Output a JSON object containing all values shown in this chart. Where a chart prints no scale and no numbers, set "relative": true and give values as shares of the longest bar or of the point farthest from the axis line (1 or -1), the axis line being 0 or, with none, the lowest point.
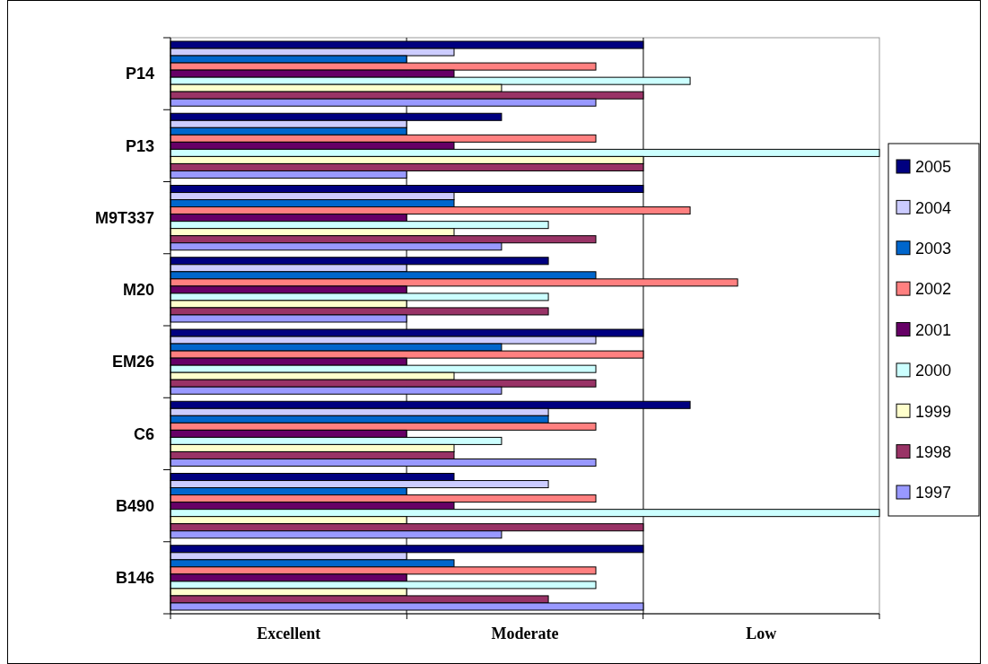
{
  "chart_data": {
    "type": "bar",
    "orientation": "horizontal",
    "relative": true,
    "categories": [
      "P14",
      "P13",
      "M9T337",
      "M20",
      "EM26",
      "C6",
      "B490",
      "B146"
    ],
    "series": [
      {
        "name": "2005",
        "color": "#000080",
        "values": [
          0.667,
          0.467,
          0.667,
          0.533,
          0.667,
          0.733,
          0.4,
          0.667
        ]
      },
      {
        "name": "2004",
        "color": "#ccccff",
        "values": [
          0.4,
          0.333,
          0.4,
          0.333,
          0.6,
          0.533,
          0.533,
          0.333
        ]
      },
      {
        "name": "2003",
        "color": "#0066cc",
        "values": [
          0.333,
          0.333,
          0.4,
          0.6,
          0.467,
          0.533,
          0.333,
          0.4
        ]
      },
      {
        "name": "2002",
        "color": "#ff8080",
        "values": [
          0.6,
          0.6,
          0.733,
          0.8,
          0.667,
          0.6,
          0.6,
          0.6
        ]
      },
      {
        "name": "2001",
        "color": "#660066",
        "values": [
          0.4,
          0.4,
          0.333,
          0.333,
          0.333,
          0.333,
          0.4,
          0.333
        ]
      },
      {
        "name": "2000",
        "color": "#ccffff",
        "values": [
          0.733,
          1,
          0.533,
          0.533,
          0.6,
          0.467,
          1,
          0.6
        ]
      },
      {
        "name": "1999",
        "color": "#ffffcc",
        "values": [
          0.467,
          0.667,
          0.4,
          0.333,
          0.4,
          0.4,
          0.333,
          0.333
        ]
      },
      {
        "name": "1998",
        "color": "#993366",
        "values": [
          0.667,
          0.667,
          0.6,
          0.533,
          0.6,
          0.4,
          0.667,
          0.533
        ]
      },
      {
        "name": "1997",
        "color": "#9999ff",
        "values": [
          0.6,
          0.333,
          0.467,
          0.333,
          0.467,
          0.6,
          0.467,
          0.667
        ]
      }
    ],
    "annotations": [
      "Excellent",
      "Moderate",
      "Low"
    ],
    "ref_lines": [
      {
        "axis": "x",
        "value": 0.333,
        "color": "#000000"
      },
      {
        "axis": "x",
        "value": 0.667,
        "color": "#000000"
      }
    ],
    "legend": "right"
  }
}
